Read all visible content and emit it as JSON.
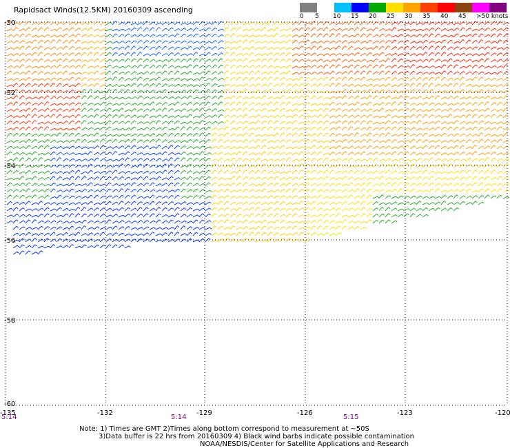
{
  "title": "Rapidsact Winds(12.5KM) 20160309 ascending",
  "scale": {
    "colors": [
      "#808080",
      "#ffffff",
      "#00bfff",
      "#0000ff",
      "#00aa00",
      "#ffe000",
      "#ffa500",
      "#ff4000",
      "#ff0000",
      "#8b4513",
      "#ff00ff",
      "#800080"
    ],
    "labels": [
      "0",
      "5",
      "10",
      "15",
      "20",
      "25",
      "30",
      "35",
      "40",
      "45",
      ">50 knots"
    ]
  },
  "axes": {
    "lat_labels": [
      "-50",
      "-52",
      "-54",
      "-56",
      "-58",
      "-60"
    ],
    "lon_labels": [
      "-135",
      "-132",
      "-129",
      "-126",
      "-123",
      "-120"
    ]
  },
  "times": [
    "5:14",
    "5:14",
    "5:15"
  ],
  "notes": {
    "line1": "Note: 1) Times are GMT 2)Times along bottom correspond to measurement at ~50S",
    "line2": "3)Data buffer is 22 hrs from 20160309 4) Black wind barbs indicate possible contamination",
    "line3": "NOAA/NESDIS/Center for Satellite Applications and Research"
  },
  "map": {
    "lat_range": [
      -60,
      -50
    ],
    "lon_range": [
      -135,
      -120
    ],
    "grid": "dotted"
  }
}
